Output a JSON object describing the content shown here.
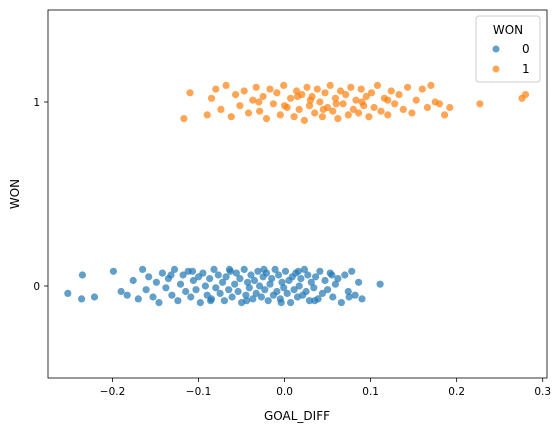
{
  "chart_data": {
    "type": "scatter",
    "subtype": "strip",
    "xlabel": "GOAL_DIFF",
    "ylabel": "WON",
    "xlim": [
      -0.275,
      0.305
    ],
    "ylim": [
      -0.5,
      1.5
    ],
    "x_ticks": [
      -0.2,
      -0.1,
      0.0,
      0.1,
      0.2,
      0.3
    ],
    "x_tick_labels": [
      "−0.2",
      "−0.1",
      "0.0",
      "0.1",
      "0.2",
      "0.3"
    ],
    "y_ticks": [
      0,
      1
    ],
    "y_tick_labels": [
      "0",
      "1"
    ],
    "grid": false,
    "legend": {
      "title": "WON",
      "placement": "top-right",
      "entries": [
        {
          "label": "0",
          "color": "#1f77b4"
        },
        {
          "label": "1",
          "color": "#ff7f0e"
        }
      ]
    },
    "series": [
      {
        "name": "0",
        "category": 0,
        "color": "#1f77b4",
        "points": [
          [
            -0.252,
            -0.04
          ],
          [
            -0.236,
            -0.07
          ],
          [
            -0.221,
            -0.06
          ],
          [
            -0.235,
            0.06
          ],
          [
            -0.199,
            0.08
          ],
          [
            -0.19,
            -0.03
          ],
          [
            -0.183,
            -0.05
          ],
          [
            -0.176,
            0.03
          ],
          [
            -0.17,
            -0.07
          ],
          [
            -0.165,
            0.09
          ],
          [
            -0.161,
            -0.02
          ],
          [
            -0.158,
            0.05
          ],
          [
            -0.153,
            -0.06
          ],
          [
            -0.149,
            0.02
          ],
          [
            -0.146,
            -0.09
          ],
          [
            -0.142,
            0.07
          ],
          [
            -0.138,
            -0.01
          ],
          [
            -0.135,
            0.04
          ],
          [
            -0.131,
            -0.05
          ],
          [
            -0.128,
            0.09
          ],
          [
            -0.124,
            -0.08
          ],
          [
            -0.121,
            0.01
          ],
          [
            -0.118,
            0.06
          ],
          [
            -0.115,
            -0.03
          ],
          [
            -0.112,
            0.08
          ],
          [
            -0.109,
            -0.06
          ],
          [
            -0.106,
            0.03
          ],
          [
            -0.103,
            -0.02
          ],
          [
            -0.1,
            0.05
          ],
          [
            -0.098,
            -0.09
          ],
          [
            -0.095,
            0.07
          ],
          [
            -0.092,
            0.0
          ],
          [
            -0.09,
            -0.05
          ],
          [
            -0.087,
            0.04
          ],
          [
            -0.085,
            -0.07
          ],
          [
            -0.082,
            0.09
          ],
          [
            -0.08,
            -0.01
          ],
          [
            -0.077,
            0.06
          ],
          [
            -0.075,
            -0.04
          ],
          [
            -0.072,
            0.02
          ],
          [
            -0.07,
            -0.08
          ],
          [
            -0.068,
            0.05
          ],
          [
            -0.065,
            -0.02
          ],
          [
            -0.063,
            0.08
          ],
          [
            -0.061,
            -0.06
          ],
          [
            -0.058,
            0.01
          ],
          [
            -0.056,
            0.07
          ],
          [
            -0.054,
            -0.03
          ],
          [
            -0.052,
            0.04
          ],
          [
            -0.05,
            -0.09
          ],
          [
            -0.047,
            0.09
          ],
          [
            -0.045,
            -0.05
          ],
          [
            -0.043,
            0.02
          ],
          [
            -0.041,
            -0.01
          ],
          [
            -0.039,
            0.06
          ],
          [
            -0.037,
            -0.07
          ],
          [
            -0.035,
            0.03
          ],
          [
            -0.033,
            -0.04
          ],
          [
            -0.031,
            0.08
          ],
          [
            -0.029,
            0.0
          ],
          [
            -0.027,
            -0.06
          ],
          [
            -0.025,
            0.05
          ],
          [
            -0.023,
            -0.02
          ],
          [
            -0.021,
            0.07
          ],
          [
            -0.019,
            -0.08
          ],
          [
            -0.017,
            0.01
          ],
          [
            -0.015,
            0.04
          ],
          [
            -0.013,
            -0.05
          ],
          [
            -0.011,
            0.09
          ],
          [
            -0.009,
            -0.03
          ],
          [
            -0.007,
            0.06
          ],
          [
            -0.005,
            -0.07
          ],
          [
            -0.003,
            0.02
          ],
          [
            -0.001,
            -0.01
          ],
          [
            0.001,
            0.08
          ],
          [
            0.003,
            -0.04
          ],
          [
            0.005,
            0.03
          ],
          [
            0.007,
            -0.09
          ],
          [
            0.009,
            0.05
          ],
          [
            0.011,
            -0.02
          ],
          [
            0.013,
            0.07
          ],
          [
            0.015,
            -0.06
          ],
          [
            0.017,
            0.0
          ],
          [
            0.019,
            0.04
          ],
          [
            0.021,
            -0.05
          ],
          [
            0.023,
            0.09
          ],
          [
            0.025,
            -0.03
          ],
          [
            0.027,
            0.06
          ],
          [
            0.029,
            -0.08
          ],
          [
            0.031,
            0.02
          ],
          [
            0.034,
            -0.01
          ],
          [
            0.036,
            0.05
          ],
          [
            0.039,
            -0.07
          ],
          [
            0.041,
            0.08
          ],
          [
            0.044,
            -0.04
          ],
          [
            0.047,
            0.03
          ],
          [
            0.05,
            -0.02
          ],
          [
            0.053,
            0.07
          ],
          [
            0.056,
            -0.06
          ],
          [
            0.059,
            0.01
          ],
          [
            0.062,
            0.04
          ],
          [
            0.066,
            -0.09
          ],
          [
            0.07,
            0.06
          ],
          [
            0.074,
            -0.03
          ],
          [
            0.078,
            0.08
          ],
          [
            0.082,
            -0.05
          ],
          [
            0.086,
            0.02
          ],
          [
            0.09,
            -0.07
          ],
          [
            0.111,
            0.01
          ],
          [
            -0.132,
            0.06
          ],
          [
            -0.107,
            0.08
          ],
          [
            -0.086,
            -0.08
          ],
          [
            -0.064,
            0.09
          ],
          [
            -0.044,
            -0.08
          ],
          [
            -0.024,
            0.09
          ],
          [
            -0.004,
            -0.09
          ],
          [
            0.016,
            0.08
          ],
          [
            0.035,
            -0.08
          ],
          [
            0.055,
            0.06
          ],
          [
            0.075,
            -0.06
          ]
        ]
      },
      {
        "name": "1",
        "category": 1,
        "color": "#ff7f0e",
        "points": [
          [
            -0.117,
            0.91
          ],
          [
            -0.11,
            1.05
          ],
          [
            -0.09,
            0.93
          ],
          [
            -0.085,
            1.02
          ],
          [
            -0.08,
            1.07
          ],
          [
            -0.074,
            0.96
          ],
          [
            -0.068,
            1.09
          ],
          [
            -0.062,
            0.92
          ],
          [
            -0.057,
            1.04
          ],
          [
            -0.052,
            0.98
          ],
          [
            -0.047,
            1.06
          ],
          [
            -0.042,
            0.94
          ],
          [
            -0.037,
            1.01
          ],
          [
            -0.033,
            1.08
          ],
          [
            -0.029,
            0.95
          ],
          [
            -0.025,
            1.03
          ],
          [
            -0.021,
            0.91
          ],
          [
            -0.017,
            1.07
          ],
          [
            -0.013,
            0.99
          ],
          [
            -0.009,
            1.05
          ],
          [
            -0.005,
            0.93
          ],
          [
            -0.001,
            1.09
          ],
          [
            0.003,
            0.97
          ],
          [
            0.007,
            1.02
          ],
          [
            0.011,
            0.92
          ],
          [
            0.014,
            1.06
          ],
          [
            0.017,
            0.96
          ],
          [
            0.02,
            1.04
          ],
          [
            0.023,
            0.9
          ],
          [
            0.026,
            1.08
          ],
          [
            0.029,
            0.98
          ],
          [
            0.032,
            1.03
          ],
          [
            0.035,
            0.94
          ],
          [
            0.038,
            1.07
          ],
          [
            0.041,
            1.0
          ],
          [
            0.044,
            0.92
          ],
          [
            0.047,
            1.05
          ],
          [
            0.05,
            0.97
          ],
          [
            0.053,
            1.09
          ],
          [
            0.056,
            0.95
          ],
          [
            0.059,
            1.02
          ],
          [
            0.062,
            0.91
          ],
          [
            0.065,
            1.06
          ],
          [
            0.068,
            0.99
          ],
          [
            0.071,
            1.04
          ],
          [
            0.074,
            0.93
          ],
          [
            0.077,
            1.08
          ],
          [
            0.08,
            0.96
          ],
          [
            0.083,
            1.01
          ],
          [
            0.086,
            0.94
          ],
          [
            0.089,
            1.07
          ],
          [
            0.092,
            0.98
          ],
          [
            0.095,
            1.03
          ],
          [
            0.098,
            0.92
          ],
          [
            0.101,
            1.05
          ],
          [
            0.104,
            0.97
          ],
          [
            0.108,
            1.09
          ],
          [
            0.112,
            0.95
          ],
          [
            0.116,
            1.02
          ],
          [
            0.12,
            0.93
          ],
          [
            0.124,
            1.06
          ],
          [
            0.128,
            0.99
          ],
          [
            0.133,
            1.04
          ],
          [
            0.138,
            0.96
          ],
          [
            0.143,
            1.08
          ],
          [
            0.148,
            0.94
          ],
          [
            0.153,
            1.01
          ],
          [
            0.16,
            1.07
          ],
          [
            0.166,
            0.97
          ],
          [
            0.17,
            1.09
          ],
          [
            0.175,
            1.0
          ],
          [
            0.18,
            0.99
          ],
          [
            0.186,
            0.93
          ],
          [
            0.192,
            0.97
          ],
          [
            0.227,
            0.99
          ],
          [
            0.276,
            1.02
          ],
          [
            0.28,
            1.04
          ],
          [
            -0.03,
            1.0
          ],
          [
            0.0,
            0.98
          ],
          [
            0.03,
            1.01
          ],
          [
            0.06,
            0.99
          ],
          [
            0.09,
            1.0
          ],
          [
            0.12,
            1.01
          ],
          [
            0.045,
            0.96
          ],
          [
            0.015,
            1.03
          ]
        ]
      }
    ]
  }
}
